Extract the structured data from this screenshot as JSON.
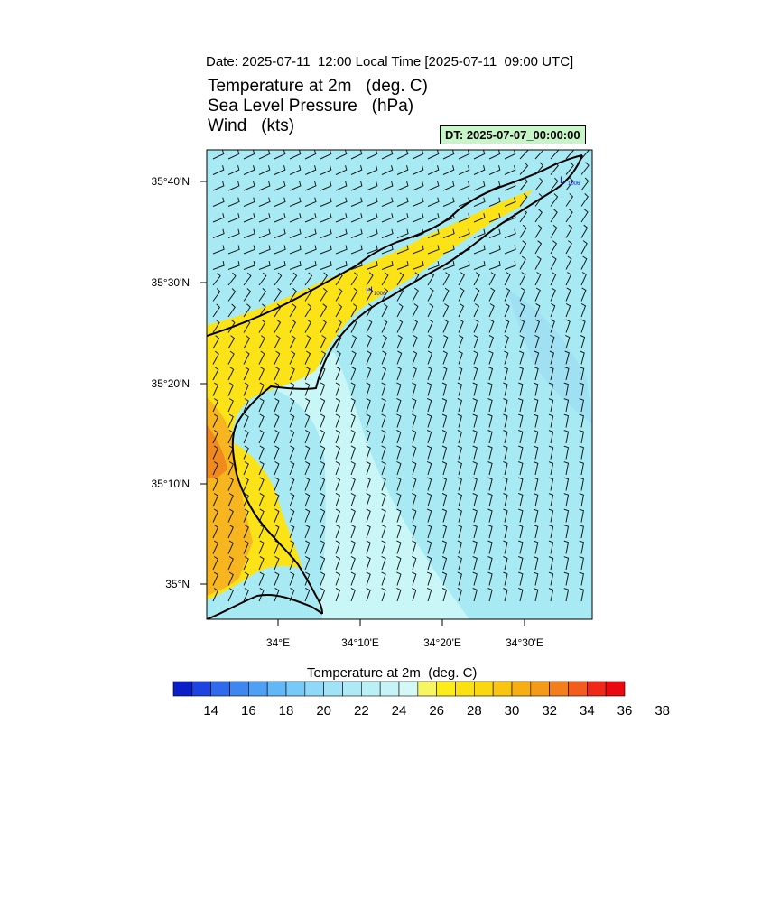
{
  "header": {
    "date_line": "Date: 2025-07-11  12:00 Local Time [2025-07-11  09:00 UTC]",
    "fields": [
      "Temperature at 2m   (deg. C)",
      "Sea Level Pressure   (hPa)",
      "Wind   (kts)"
    ],
    "dt_label": "DT: 2025-07-07_00:00:00"
  },
  "map": {
    "lat_ticks": [
      "35°40'N",
      "35°30'N",
      "35°20'N",
      "35°10'N",
      "35°N"
    ],
    "lon_ticks": [
      "34°E",
      "34°10'E",
      "34°20'E",
      "34°30'E"
    ],
    "pressure_labels": [
      {
        "symbol": "H",
        "value": "1006"
      },
      {
        "symbol": "L",
        "value": "1006"
      }
    ],
    "colors": {
      "sea": "#a8eaf4",
      "sea_light": "#c9f7f8",
      "land_warm": "#fbe318",
      "land_hot": "#f6a51f",
      "coast": "#000000"
    }
  },
  "colorbar": {
    "title": "Temperature at 2m  (deg. C)",
    "colors": [
      "#0a1fc8",
      "#1d44e0",
      "#2e6aeb",
      "#3e86f0",
      "#4fa0f4",
      "#62b7f6",
      "#77c9f8",
      "#8ed8f8",
      "#a0e2f6",
      "#aeeaf6",
      "#b9f0f6",
      "#c6f4f6",
      "#d3f8f6",
      "#f7f560",
      "#fbec1a",
      "#fbe112",
      "#fbd70f",
      "#f9c50e",
      "#f7ae12",
      "#f59a16",
      "#f37e1a",
      "#f25c1c",
      "#f02818",
      "#e80a0e"
    ],
    "labels": [
      "14",
      "16",
      "18",
      "20",
      "22",
      "24",
      "26",
      "28",
      "30",
      "32",
      "34",
      "36",
      "38"
    ]
  }
}
